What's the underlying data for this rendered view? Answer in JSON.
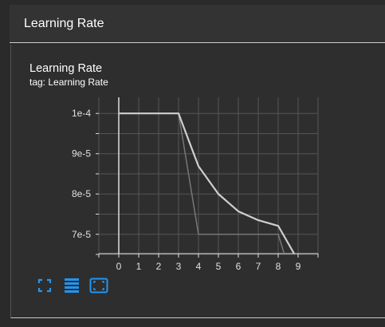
{
  "panel": {
    "title": "Learning Rate"
  },
  "card": {
    "title": "Learning Rate",
    "tag": "tag: Learning Rate"
  },
  "toolbar": {
    "buttons": [
      {
        "icon": "fullscreen-icon"
      },
      {
        "icon": "toggle-log-scale-icon"
      },
      {
        "icon": "fit-domain-icon"
      }
    ]
  },
  "colors": {
    "line": "#cfcfcf",
    "line_faint": "#777777",
    "grid": "#555555",
    "axis": "#dddddd",
    "accent": "#2196f3"
  },
  "chart_data": {
    "type": "line",
    "xlim": [
      -1,
      10
    ],
    "ylim": [
      6.52e-05,
      0.000104
    ],
    "x_ticks": [
      "0",
      "1",
      "2",
      "3",
      "4",
      "5",
      "6",
      "7",
      "8",
      "9"
    ],
    "x_tick_values": [
      0,
      1,
      2,
      3,
      4,
      5,
      6,
      7,
      8,
      9
    ],
    "y_ticks": [
      "1e-4",
      "9e-5",
      "8e-5",
      "7e-5"
    ],
    "y_tick_values": [
      0.0001,
      9e-05,
      8e-05,
      7e-05
    ],
    "grid": true,
    "series": [
      {
        "style": "smoothed",
        "x": [
          0,
          1,
          2,
          3,
          4,
          5,
          6,
          7,
          8,
          8.8
        ],
        "y": [
          0.0001,
          0.0001,
          0.0001,
          0.0001,
          8.69e-05,
          8e-05,
          7.57e-05,
          7.35e-05,
          7.21e-05,
          6.52e-05
        ]
      },
      {
        "style": "raw",
        "x": [
          0,
          1,
          2,
          3,
          4,
          5,
          6,
          7,
          8,
          8.3
        ],
        "y": [
          0.0001,
          0.0001,
          0.0001,
          0.0001,
          7e-05,
          7e-05,
          7e-05,
          7e-05,
          7e-05,
          6.52e-05
        ]
      }
    ]
  }
}
